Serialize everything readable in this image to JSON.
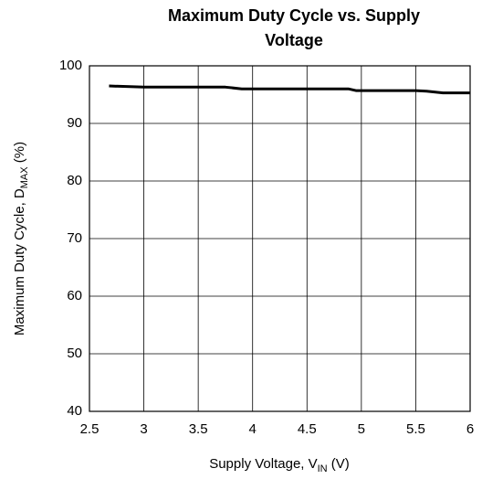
{
  "chart_data": {
    "type": "line",
    "title": [
      "Maximum Duty Cycle vs. Supply",
      "Voltage"
    ],
    "xlabel": [
      "Supply Voltage, V",
      "IN",
      " (V)"
    ],
    "ylabel": [
      "Maximum Duty Cycle, D",
      "MAX",
      " (%)"
    ],
    "x": [
      2.68,
      3,
      3.5,
      3.75,
      3.9,
      4.5,
      4.88,
      4.95,
      5.5,
      5.6,
      5.75,
      6
    ],
    "series": [
      {
        "name": "D_MAX",
        "color": "#000000",
        "values": [
          96.5,
          96.3,
          96.3,
          96.3,
          96.0,
          96.0,
          96.0,
          95.7,
          95.7,
          95.6,
          95.3,
          95.3
        ]
      }
    ],
    "xlim": [
      2.5,
      6
    ],
    "xticks": [
      2.5,
      3,
      3.5,
      4,
      4.5,
      5,
      5.5,
      6
    ],
    "ylim": [
      40,
      100
    ],
    "yticks": [
      40,
      50,
      60,
      70,
      80,
      90,
      100
    ],
    "grid": true
  }
}
